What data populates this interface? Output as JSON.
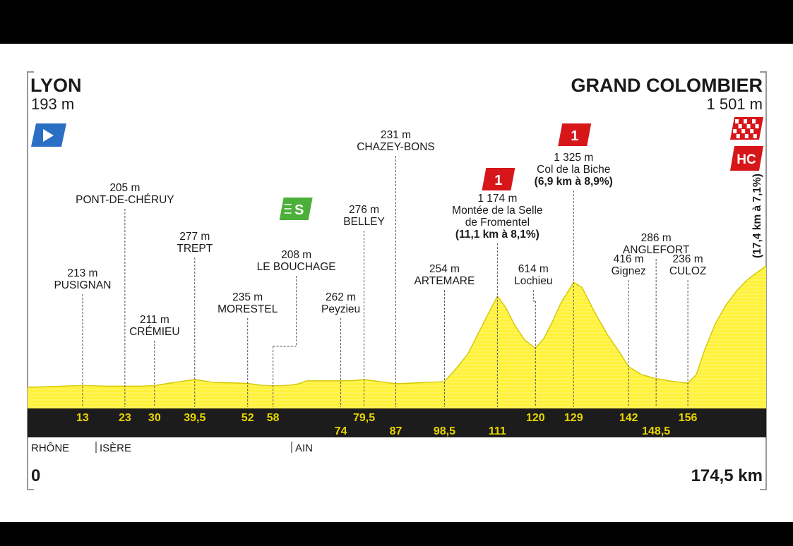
{
  "colors": {
    "background": "#000000",
    "panel": "#ffffff",
    "profile": "#fff23a",
    "bar": "#1c1c1c",
    "km_text": "#e8d400",
    "climb_red": "#d7161a",
    "sprint_green": "#4caf3a",
    "start_blue": "#2a6fc4"
  },
  "start": {
    "city": "LYON",
    "altitude": "193 m",
    "km": "0",
    "icon": "start-flag-icon"
  },
  "finish": {
    "city": "GRAND COLOMBIER",
    "altitude": "1 501 m",
    "km": "174,5 km",
    "icon": "finish-flag-icon",
    "category": "HC",
    "climb_info": "(17,4 km à 7,1%)"
  },
  "departments": [
    {
      "name": "RHÔNE",
      "km": 0
    },
    {
      "name": "ISÈRE",
      "km": 23
    },
    {
      "name": "AIN",
      "km": 58
    }
  ],
  "chart_data": {
    "type": "area",
    "title": "",
    "xlabel": "",
    "ylabel": "",
    "x_range": [
      0,
      174.5
    ],
    "units": {
      "x": "km",
      "y": "m"
    },
    "profile": {
      "x": [
        0,
        5,
        13,
        18,
        23,
        27,
        30,
        34,
        39.5,
        44,
        48,
        52,
        55,
        58,
        62,
        64,
        66,
        70,
        74,
        77,
        79.5,
        83,
        87,
        92,
        98.5,
        101,
        104,
        107,
        109,
        111,
        113,
        115,
        117.5,
        120,
        122,
        124,
        126,
        128,
        129,
        131,
        134,
        137,
        140,
        142,
        145,
        148.5,
        152,
        156,
        158,
        160,
        162.5,
        165,
        167.5,
        170,
        172,
        174.5
      ],
      "y": [
        193,
        200,
        213,
        205,
        205,
        205,
        211,
        240,
        277,
        245,
        240,
        235,
        215,
        208,
        215,
        230,
        262,
        262,
        262,
        265,
        276,
        255,
        231,
        240,
        254,
        380,
        550,
        820,
        1000,
        1174,
        1050,
        870,
        700,
        614,
        720,
        900,
        1100,
        1250,
        1325,
        1270,
        1000,
        760,
        560,
        416,
        330,
        286,
        260,
        236,
        330,
        600,
        880,
        1080,
        1230,
        1350,
        1420,
        1501
      ]
    },
    "points": [
      {
        "km": "13",
        "x": 13,
        "altitude": "213 m",
        "name": "PUSIGNAN"
      },
      {
        "km": "23",
        "x": 23,
        "altitude": "205 m",
        "name": "PONT-DE-CHÉRUY"
      },
      {
        "km": "30",
        "x": 30,
        "altitude": "211 m",
        "name": "CRÉMIEU"
      },
      {
        "km": "39,5",
        "x": 39.5,
        "altitude": "277 m",
        "name": "TREPT"
      },
      {
        "km": "52",
        "x": 52,
        "altitude": "235 m",
        "name": "MORESTEL"
      },
      {
        "km": "58",
        "x": 58,
        "altitude": "208 m",
        "name": "LE BOUCHAGE"
      },
      {
        "km": "74",
        "x": 74,
        "altitude": "262 m",
        "name": "Peyzieu"
      },
      {
        "km": "79,5",
        "x": 79.5,
        "altitude": "276 m",
        "name": "BELLEY"
      },
      {
        "km": "87",
        "x": 87,
        "altitude": "231 m",
        "name": "CHAZEY-BONS"
      },
      {
        "km": "98,5",
        "x": 98.5,
        "altitude": "254 m",
        "name": "ARTEMARE"
      },
      {
        "km": "111",
        "x": 111,
        "altitude": "1 174 m",
        "name": "Montée de la Selle de Fromentel",
        "name_lines": [
          "Montée de la Selle",
          "de Fromentel"
        ],
        "climb_info": "(11,1 km à 8,1%)",
        "category": "1"
      },
      {
        "km": "120",
        "x": 120,
        "altitude": "614 m",
        "name": "Lochieu"
      },
      {
        "km": "129",
        "x": 129,
        "altitude": "1 325 m",
        "name": "Col de la Biche",
        "climb_info": "(6,9 km à 8,9%)",
        "category": "1"
      },
      {
        "km": "142",
        "x": 142,
        "altitude": "416 m",
        "name": "Gignez"
      },
      {
        "km": "148,5",
        "x": 148.5,
        "altitude": "286 m",
        "name": "ANGLEFORT"
      },
      {
        "km": "156",
        "x": 156,
        "altitude": "236 m",
        "name": "CULOZ"
      }
    ],
    "sprint": {
      "km": 58,
      "label": "S"
    }
  }
}
